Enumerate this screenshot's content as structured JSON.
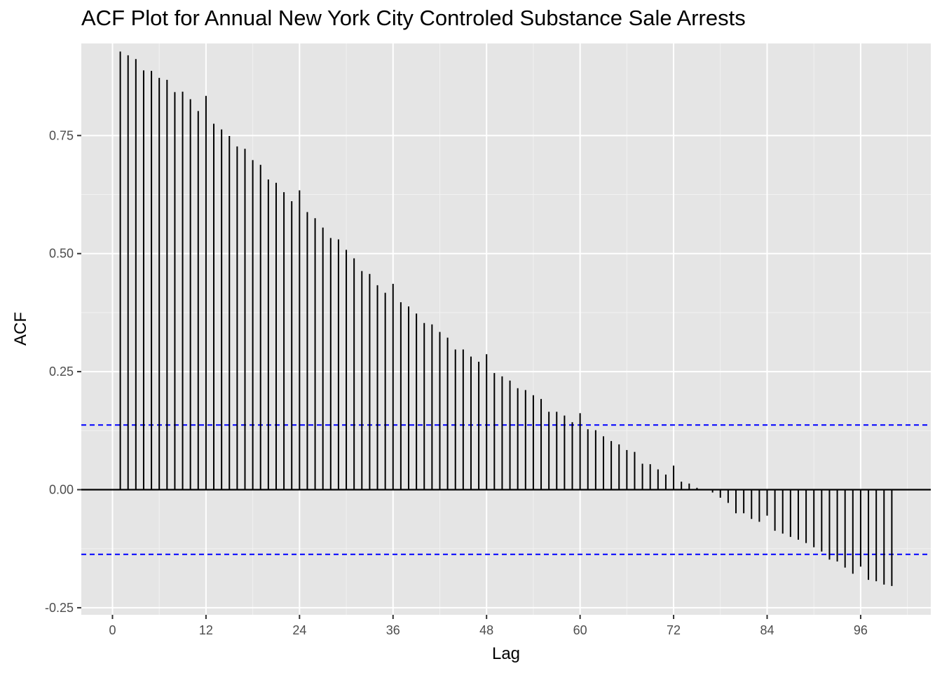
{
  "chart_data": {
    "type": "bar",
    "title": "ACF Plot for Annual New York City Controled Substance Sale Arrests",
    "xlabel": "Lag",
    "ylabel": "ACF",
    "x_ticks": [
      0,
      12,
      24,
      36,
      48,
      60,
      72,
      84,
      96
    ],
    "y_ticks": [
      -0.25,
      0.0,
      0.25,
      0.5,
      0.75
    ],
    "y_tick_labels": [
      "-0.25",
      "0.00",
      "0.25",
      "0.50",
      "0.75"
    ],
    "xlim": [
      -4,
      105
    ],
    "ylim": [
      -0.265,
      0.945
    ],
    "grid": true,
    "confidence_bound": 0.137,
    "lags": [
      1,
      2,
      3,
      4,
      5,
      6,
      7,
      8,
      9,
      10,
      11,
      12,
      13,
      14,
      15,
      16,
      17,
      18,
      19,
      20,
      21,
      22,
      23,
      24,
      25,
      26,
      27,
      28,
      29,
      30,
      31,
      32,
      33,
      34,
      35,
      36,
      37,
      38,
      39,
      40,
      41,
      42,
      43,
      44,
      45,
      46,
      47,
      48,
      49,
      50,
      51,
      52,
      53,
      54,
      55,
      56,
      57,
      58,
      59,
      60,
      61,
      62,
      63,
      64,
      65,
      66,
      67,
      68,
      69,
      70,
      71,
      72,
      73,
      74,
      75,
      76,
      77,
      78,
      79,
      80,
      81,
      82,
      83,
      84,
      85,
      86,
      87,
      88,
      89,
      90,
      91,
      92,
      93,
      94,
      95,
      96,
      97,
      98,
      99,
      100
    ],
    "values": [
      0.928,
      0.92,
      0.912,
      0.888,
      0.887,
      0.872,
      0.868,
      0.842,
      0.843,
      0.827,
      0.802,
      0.834,
      0.775,
      0.763,
      0.749,
      0.727,
      0.722,
      0.698,
      0.688,
      0.657,
      0.65,
      0.63,
      0.611,
      0.634,
      0.588,
      0.575,
      0.555,
      0.533,
      0.53,
      0.508,
      0.49,
      0.463,
      0.457,
      0.433,
      0.417,
      0.436,
      0.397,
      0.388,
      0.373,
      0.353,
      0.35,
      0.334,
      0.322,
      0.297,
      0.297,
      0.282,
      0.271,
      0.287,
      0.247,
      0.24,
      0.231,
      0.215,
      0.211,
      0.2,
      0.192,
      0.165,
      0.165,
      0.157,
      0.143,
      0.162,
      0.128,
      0.126,
      0.113,
      0.103,
      0.096,
      0.084,
      0.08,
      0.055,
      0.054,
      0.043,
      0.032,
      0.051,
      0.017,
      0.013,
      0.004,
      0.001,
      -0.006,
      -0.017,
      -0.028,
      -0.05,
      -0.05,
      -0.062,
      -0.068,
      -0.055,
      -0.087,
      -0.093,
      -0.1,
      -0.106,
      -0.113,
      -0.122,
      -0.131,
      -0.148,
      -0.152,
      -0.165,
      -0.178,
      -0.163,
      -0.191,
      -0.194,
      -0.201,
      -0.204
    ]
  }
}
